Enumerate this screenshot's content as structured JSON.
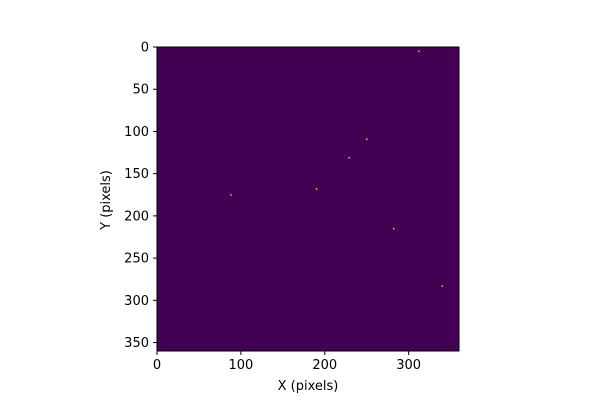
{
  "chart_data": {
    "type": "heatmap",
    "title": "",
    "xlabel": "X (pixels)",
    "ylabel": "Y (pixels)",
    "xlim": [
      0,
      360
    ],
    "ylim": [
      360,
      0
    ],
    "y_inverted": true,
    "x_ticks": [
      0,
      100,
      200,
      300
    ],
    "y_ticks": [
      0,
      50,
      100,
      150,
      200,
      250,
      300,
      350
    ],
    "grid": false,
    "colormap": "viridis",
    "background_value_color": "#440154",
    "point_color": "#fde725",
    "bright_pixels": [
      {
        "x": 312,
        "y": 5
      },
      {
        "x": 250,
        "y": 109
      },
      {
        "x": 229,
        "y": 131
      },
      {
        "x": 190,
        "y": 168
      },
      {
        "x": 88,
        "y": 175
      },
      {
        "x": 282,
        "y": 215
      },
      {
        "x": 340,
        "y": 283
      }
    ]
  }
}
